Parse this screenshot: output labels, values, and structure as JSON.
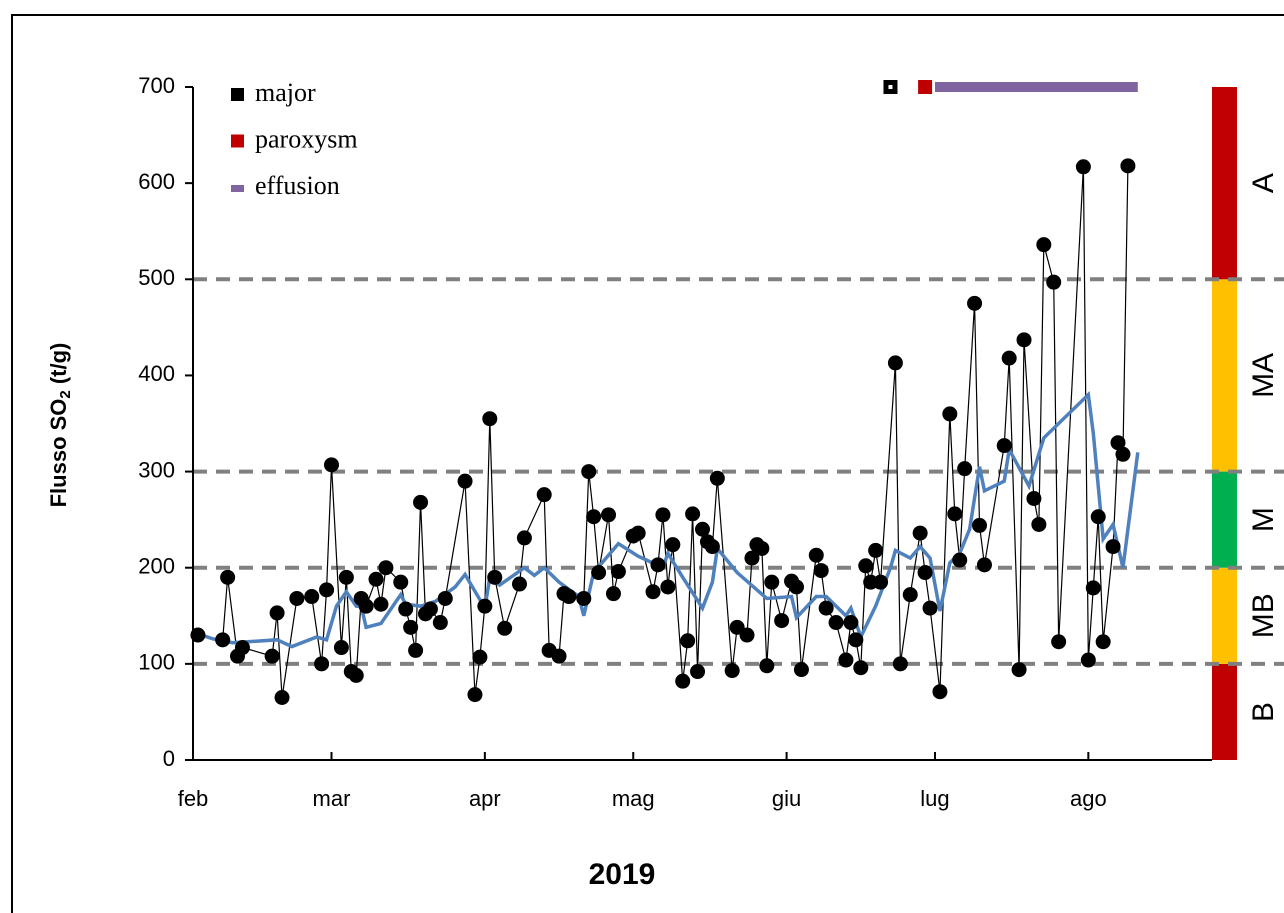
{
  "chart_data": {
    "type": "scatter",
    "y_label": {
      "text": "Flusso SO",
      "sub": "2",
      "after": " (t/g)"
    },
    "x_label": "2019",
    "xlim": [
      0,
      206
    ],
    "xticks": [
      {
        "value": 0,
        "label": "feb"
      },
      {
        "value": 28,
        "label": "mar"
      },
      {
        "value": 59,
        "label": "apr"
      },
      {
        "value": 89,
        "label": "mag"
      },
      {
        "value": 120,
        "label": "giu"
      },
      {
        "value": 150,
        "label": "lug"
      },
      {
        "value": 181,
        "label": "ago"
      }
    ],
    "ylim": [
      0,
      700
    ],
    "yticks": [
      0,
      100,
      200,
      300,
      400,
      500,
      600,
      700
    ],
    "points": {
      "color": "#000000",
      "x": [
        1,
        6,
        7,
        9,
        10,
        16,
        17,
        18,
        21,
        24,
        26,
        27,
        28,
        30,
        31,
        32,
        33,
        34,
        35,
        37,
        38,
        39,
        42,
        43,
        44,
        45,
        46,
        47,
        48,
        50,
        51,
        55,
        57,
        58,
        59,
        60,
        61,
        63,
        66,
        67,
        71,
        72,
        74,
        75,
        76,
        79,
        80,
        81,
        82,
        84,
        85,
        86,
        89,
        90,
        93,
        94,
        95,
        96,
        97,
        99,
        100,
        101,
        102,
        103,
        104,
        105,
        106,
        109,
        110,
        112,
        113,
        114,
        115,
        116,
        117,
        119,
        121,
        122,
        123,
        126,
        127,
        128,
        130,
        132,
        133,
        134,
        135,
        136,
        137,
        138,
        139,
        142,
        143,
        145,
        147,
        148,
        149,
        151,
        153,
        154,
        155,
        156,
        158,
        159,
        160,
        164,
        165,
        167,
        168,
        170,
        171,
        172,
        174,
        175,
        180,
        181,
        182,
        183,
        184,
        186,
        187,
        188,
        189
      ],
      "values": [
        130,
        125,
        190,
        108,
        117,
        108,
        153,
        65,
        168,
        170,
        100,
        177,
        307,
        117,
        190,
        92,
        88,
        168,
        160,
        188,
        162,
        200,
        185,
        157,
        138,
        114,
        268,
        152,
        157,
        143,
        168,
        290,
        68,
        107,
        160,
        355,
        190,
        137,
        183,
        231,
        276,
        114,
        108,
        173,
        170,
        168,
        300,
        253,
        195,
        255,
        173,
        196,
        233,
        236,
        175,
        203,
        255,
        180,
        224,
        82,
        124,
        256,
        92,
        240,
        227,
        222,
        293,
        93,
        138,
        130,
        210,
        224,
        220,
        98,
        185,
        145,
        186,
        180,
        94,
        213,
        197,
        158,
        143,
        104,
        143,
        125,
        96,
        202,
        185,
        218,
        185,
        413,
        100,
        172,
        236,
        195,
        158,
        71,
        360,
        256,
        208,
        303,
        475,
        244,
        203,
        327,
        418,
        94,
        437,
        272,
        245,
        536,
        497,
        123,
        617,
        104,
        179,
        253,
        123,
        222,
        330,
        318,
        618
      ]
    },
    "moving_average": {
      "color": "#4f81bd",
      "x": [
        0,
        4,
        8,
        17,
        20,
        25,
        27,
        29,
        31,
        33,
        34,
        35,
        38,
        42,
        43,
        46,
        49,
        53,
        55,
        59,
        60,
        62,
        67,
        69,
        71,
        74,
        78,
        79,
        81,
        86,
        90,
        95,
        96,
        99,
        103,
        105,
        106,
        110,
        116,
        121,
        122,
        126,
        128,
        132,
        133,
        135,
        138,
        141,
        142,
        145,
        147,
        149,
        151,
        153,
        155,
        157,
        159,
        160,
        164,
        165,
        169,
        172,
        181,
        182,
        184,
        186,
        188,
        191
      ],
      "values": [
        133,
        126,
        122,
        125,
        118,
        128,
        125,
        160,
        175,
        160,
        160,
        138,
        142,
        172,
        162,
        160,
        165,
        180,
        193,
        158,
        190,
        182,
        200,
        192,
        200,
        185,
        170,
        150,
        195,
        225,
        212,
        200,
        215,
        190,
        158,
        185,
        220,
        195,
        168,
        170,
        148,
        170,
        170,
        150,
        158,
        128,
        160,
        200,
        218,
        210,
        222,
        210,
        155,
        205,
        215,
        240,
        305,
        280,
        290,
        323,
        285,
        335,
        380,
        340,
        230,
        245,
        200,
        320
      ]
    },
    "thresholds": [
      100,
      200,
      300,
      500
    ],
    "zones": [
      {
        "label": "B",
        "from": 0,
        "to": 100,
        "color": "#c00000"
      },
      {
        "label": "MB",
        "from": 100,
        "to": 200,
        "color": "#ffc000"
      },
      {
        "label": "M",
        "from": 200,
        "to": 300,
        "color": "#00b050"
      },
      {
        "label": "MA",
        "from": 300,
        "to": 500,
        "color": "#ffc000"
      },
      {
        "label": "A",
        "from": 500,
        "to": 700,
        "color": "#c00000"
      }
    ],
    "events": [
      {
        "name": "major",
        "color": "#000000",
        "x": [
          141
        ]
      },
      {
        "name": "paroxysm",
        "color": "#c00000",
        "x": [
          148
        ]
      },
      {
        "name": "effusion",
        "color": "#8064a2",
        "xrange": [
          150,
          191
        ]
      }
    ]
  }
}
